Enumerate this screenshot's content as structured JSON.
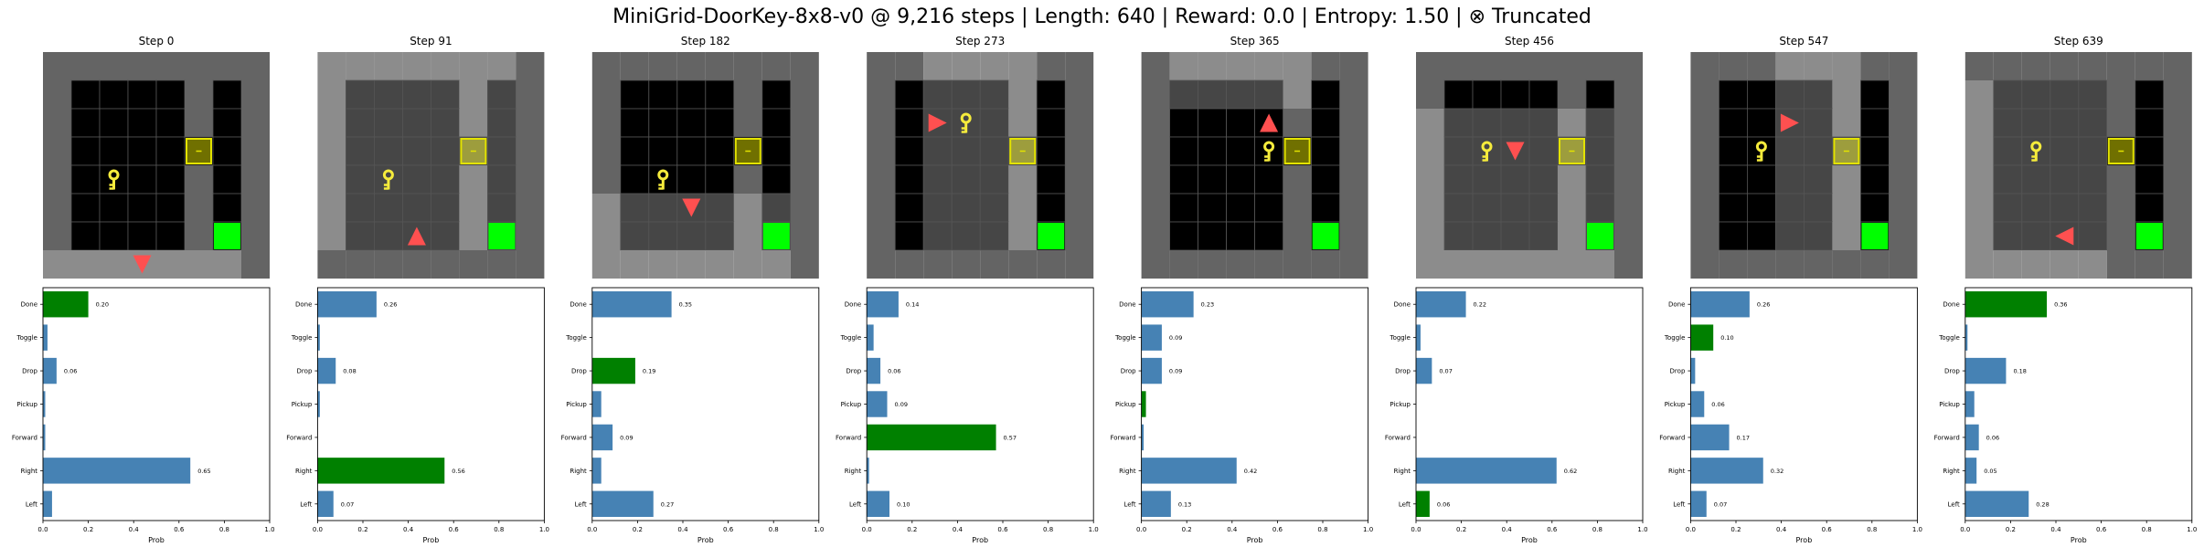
{
  "suptitle": "MiniGrid-DoorKey-8x8-v0 @ 9,216 steps | Length: 640 | Reward: 0.0 | Entropy: 1.50 | ⊗ Truncated",
  "actions": [
    "Left",
    "Right",
    "Forward",
    "Pickup",
    "Drop",
    "Toggle",
    "Done"
  ],
  "xlabel": "Prob",
  "xticks": [
    "0.0",
    "0.2",
    "0.4",
    "0.6",
    "0.8",
    "1.0"
  ],
  "colors": {
    "bar": "#4682b4",
    "chosen_bar": "#008000",
    "wall": "#646464",
    "floor": "#000000",
    "visible_wall": "#8c8c8c",
    "visible_floor": "#464646",
    "door": "#707000",
    "door_visible": "#9d9d3d",
    "door_border": "#e3e300",
    "key": "#f5eb3c",
    "goal": "#00ff00",
    "goal_visible": "#00ff00",
    "agent": "#ff5050"
  },
  "icons": {
    "agent": "triangle-agent-icon",
    "key": "key-icon",
    "door": "locked-door-icon",
    "goal": "goal-square-icon"
  },
  "chart_data": [
    {
      "type": "bar",
      "title": "Step 0",
      "xlim": [
        0,
        1
      ],
      "xlabel": "Prob",
      "categories": [
        "Left",
        "Right",
        "Forward",
        "Pickup",
        "Drop",
        "Toggle",
        "Done"
      ],
      "values": [
        0.04,
        0.65,
        0.01,
        0.01,
        0.06,
        0.02,
        0.2
      ],
      "chosen": "Done",
      "labeled": [
        "Right",
        "Drop",
        "Done"
      ],
      "grid": {
        "agent": [
          3,
          7
        ],
        "dir": "down",
        "key": [
          2,
          4
        ],
        "view": [
          0,
          7,
          7,
          9
        ]
      }
    },
    {
      "type": "bar",
      "title": "Step 91",
      "xlim": [
        0,
        1
      ],
      "xlabel": "Prob",
      "categories": [
        "Left",
        "Right",
        "Forward",
        "Pickup",
        "Drop",
        "Toggle",
        "Done"
      ],
      "values": [
        0.07,
        0.56,
        0.0,
        0.01,
        0.08,
        0.01,
        0.26
      ],
      "chosen": "Right",
      "labeled": [
        "Left",
        "Right",
        "Drop",
        "Done"
      ],
      "grid": {
        "agent": [
          3,
          6
        ],
        "dir": "up",
        "key": [
          2,
          4
        ],
        "view": [
          0,
          0,
          7,
          7
        ]
      }
    },
    {
      "type": "bar",
      "title": "Step 182",
      "xlim": [
        0,
        1
      ],
      "xlabel": "Prob",
      "categories": [
        "Left",
        "Right",
        "Forward",
        "Pickup",
        "Drop",
        "Toggle",
        "Done"
      ],
      "values": [
        0.27,
        0.04,
        0.09,
        0.04,
        0.19,
        0.0,
        0.35
      ],
      "chosen": "Drop",
      "labeled": [
        "Left",
        "Forward",
        "Drop",
        "Done"
      ],
      "grid": {
        "agent": [
          3,
          5
        ],
        "dir": "down",
        "key": [
          2,
          4
        ],
        "view": [
          0,
          5,
          7,
          9
        ]
      }
    },
    {
      "type": "bar",
      "title": "Step 273",
      "xlim": [
        0,
        1
      ],
      "xlabel": "Prob",
      "categories": [
        "Left",
        "Right",
        "Forward",
        "Pickup",
        "Drop",
        "Toggle",
        "Done"
      ],
      "values": [
        0.1,
        0.01,
        0.57,
        0.09,
        0.06,
        0.03,
        0.14
      ],
      "chosen": "Forward",
      "labeled": [
        "Left",
        "Forward",
        "Pickup",
        "Drop",
        "Done"
      ],
      "grid": {
        "agent": [
          2,
          2
        ],
        "dir": "right",
        "key": [
          3,
          2
        ],
        "view": [
          2,
          0,
          6,
          7
        ]
      }
    },
    {
      "type": "bar",
      "title": "Step 365",
      "xlim": [
        0,
        1
      ],
      "xlabel": "Prob",
      "categories": [
        "Left",
        "Right",
        "Forward",
        "Pickup",
        "Drop",
        "Toggle",
        "Done"
      ],
      "values": [
        0.13,
        0.42,
        0.01,
        0.02,
        0.09,
        0.09,
        0.23
      ],
      "chosen": "Pickup",
      "labeled": [
        "Left",
        "Right",
        "Drop",
        "Toggle",
        "Done"
      ],
      "grid": {
        "agent": [
          4,
          2
        ],
        "dir": "up",
        "key": [
          4,
          3
        ],
        "view": [
          1,
          0,
          6,
          2
        ]
      }
    },
    {
      "type": "bar",
      "title": "Step 456",
      "xlim": [
        0,
        1
      ],
      "xlabel": "Prob",
      "categories": [
        "Left",
        "Right",
        "Forward",
        "Pickup",
        "Drop",
        "Toggle",
        "Done"
      ],
      "values": [
        0.06,
        0.62,
        0.0,
        0.0,
        0.07,
        0.02,
        0.22
      ],
      "chosen": "Left",
      "labeled": [
        "Left",
        "Right",
        "Drop",
        "Done"
      ],
      "grid": {
        "agent": [
          3,
          3
        ],
        "dir": "down",
        "key": [
          2,
          3
        ],
        "view": [
          0,
          2,
          7,
          9
        ]
      }
    },
    {
      "type": "bar",
      "title": "Step 547",
      "xlim": [
        0,
        1
      ],
      "xlabel": "Prob",
      "categories": [
        "Left",
        "Right",
        "Forward",
        "Pickup",
        "Drop",
        "Toggle",
        "Done"
      ],
      "values": [
        0.07,
        0.32,
        0.17,
        0.06,
        0.02,
        0.1,
        0.26
      ],
      "chosen": "Toggle",
      "labeled": [
        "Left",
        "Right",
        "Forward",
        "Pickup",
        "Toggle",
        "Done"
      ],
      "grid": {
        "agent": [
          3,
          2
        ],
        "dir": "right",
        "key": [
          2,
          3
        ],
        "view": [
          3,
          0,
          6,
          7
        ]
      }
    },
    {
      "type": "bar",
      "title": "Step 639",
      "xlim": [
        0,
        1
      ],
      "xlabel": "Prob",
      "categories": [
        "Left",
        "Right",
        "Forward",
        "Pickup",
        "Drop",
        "Toggle",
        "Done"
      ],
      "values": [
        0.28,
        0.05,
        0.06,
        0.04,
        0.18,
        0.01,
        0.36
      ],
      "chosen": "Done",
      "labeled": [
        "Left",
        "Right",
        "Forward",
        "Drop",
        "Done"
      ],
      "grid": {
        "agent": [
          3,
          6
        ],
        "dir": "left",
        "key": [
          2,
          3
        ],
        "view": [
          0,
          1,
          5,
          9
        ]
      }
    }
  ]
}
